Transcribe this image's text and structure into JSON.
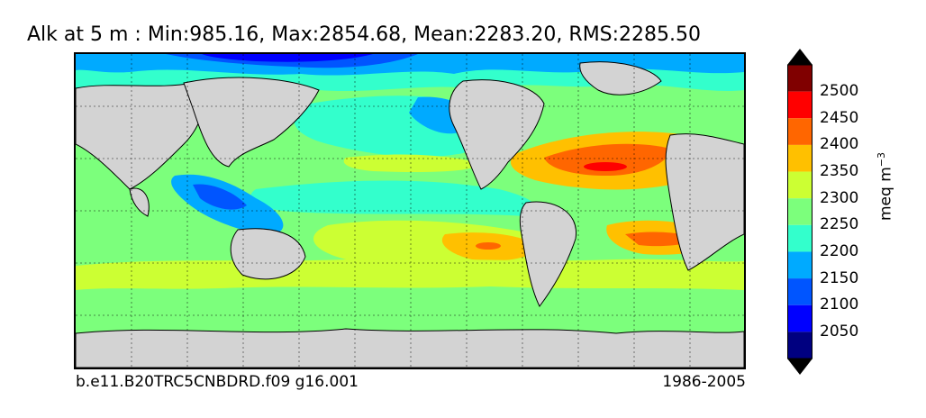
{
  "title": "Alk at 5 m : Min:985.16, Max:2854.68, Mean:2283.20, RMS:2285.50",
  "footer": {
    "case_name": "b.e11.B20TRC5CNBDRD.f09 g16.001",
    "period": "1986-2005"
  },
  "colorbar": {
    "unit_text": "meq m",
    "unit_exponent": "−3",
    "ticks": [
      "2500",
      "2450",
      "2400",
      "2350",
      "2300",
      "2250",
      "2200",
      "2150",
      "2100",
      "2050"
    ],
    "colors": [
      "#800000",
      "#ff0000",
      "#ff6600",
      "#ffc000",
      "#ccff33",
      "#7cff7c",
      "#33ffcc",
      "#00aaff",
      "#0055ff",
      "#0000ff",
      "#000080"
    ],
    "extend": "both"
  },
  "map": {
    "land_color": "#d3d3d3",
    "background_level": "2250",
    "gridlines": "dotted"
  }
}
